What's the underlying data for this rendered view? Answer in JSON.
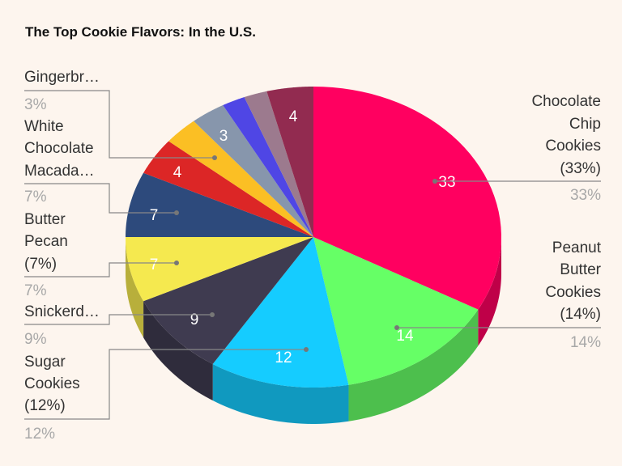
{
  "chart_data": {
    "type": "pie",
    "style": "3d",
    "title": "The Top Cookie Flavors: In the U.S.",
    "slices": [
      {
        "label": "Chocolate Chip Cookies",
        "value": 33,
        "color": "#ff0060",
        "label_text": [
          "Chocolate",
          "Chip",
          "Cookies",
          "(33%)"
        ],
        "pct": "33%"
      },
      {
        "label": "Peanut Butter Cookies",
        "value": 14,
        "color": "#66ff66",
        "label_text": [
          "Peanut",
          "Butter",
          "Cookies",
          "(14%)"
        ],
        "pct": "14%"
      },
      {
        "label": "Sugar Cookies",
        "value": 12,
        "color": "#15ccff",
        "label_text": [
          "Sugar",
          "Cookies",
          "(12%)"
        ],
        "pct": "12%"
      },
      {
        "label": "Snickerdoodle",
        "value": 9,
        "color": "#3f3b50",
        "label_text": [
          "Snickerd…"
        ],
        "pct": "9%"
      },
      {
        "label": "Butter Pecan",
        "value": 7,
        "color": "#f5e94f",
        "label_text": [
          "Butter",
          "Pecan",
          "(7%)"
        ],
        "pct": "7%"
      },
      {
        "label": "White Chocolate Macadamia",
        "value": 7,
        "color": "#2d4a7c",
        "label_text": [
          "White",
          "Chocolate",
          "Macada…"
        ],
        "pct": "7%"
      },
      {
        "label": "",
        "value": 4,
        "color": "#dc2626",
        "label_text": [],
        "pct": ""
      },
      {
        "label": "Gingerbread",
        "value": 3,
        "color": "#fbbf24",
        "label_text": [
          "Gingerbr…"
        ],
        "pct": "3%"
      },
      {
        "label": "",
        "value": 3,
        "color": "#8796ac",
        "label_text": [],
        "pct": ""
      },
      {
        "label": "",
        "value": 2,
        "color": "#4f46e5",
        "label_text": [],
        "pct": ""
      },
      {
        "label": "",
        "value": 2,
        "color": "#9c7a8e",
        "label_text": [],
        "pct": ""
      },
      {
        "label": "",
        "value": 4,
        "color": "#922b50",
        "label_text": [],
        "pct": ""
      }
    ],
    "data_labels_shown_for": [
      33,
      14,
      12,
      9,
      7,
      7,
      4,
      3,
      4
    ],
    "legend": "none"
  }
}
